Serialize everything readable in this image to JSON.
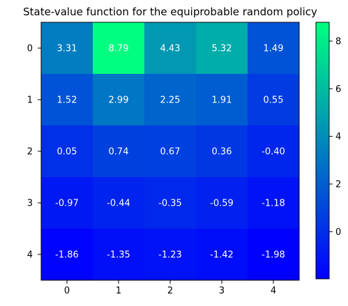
{
  "chart_data": {
    "type": "heatmap",
    "title": "State-value function for the equiprobable random policy",
    "xlabel": "",
    "ylabel": "",
    "x_ticks": [
      "0",
      "1",
      "2",
      "3",
      "4"
    ],
    "y_ticks": [
      "0",
      "1",
      "2",
      "3",
      "4"
    ],
    "values": [
      [
        3.31,
        8.79,
        4.43,
        5.32,
        1.49
      ],
      [
        1.52,
        2.99,
        2.25,
        1.91,
        0.55
      ],
      [
        0.05,
        0.74,
        0.67,
        0.36,
        -0.4
      ],
      [
        -0.97,
        -0.44,
        -0.35,
        -0.59,
        -1.18
      ],
      [
        -1.86,
        -1.35,
        -1.23,
        -1.42,
        -1.98
      ]
    ],
    "colormap": "winter",
    "color_low": "#0000ff",
    "color_high": "#00ff80",
    "value_range": [
      -1.98,
      8.79
    ],
    "colorbar_ticks": [
      0,
      2,
      4,
      6,
      8
    ],
    "colorbar_tick_labels": [
      "0",
      "2",
      "4",
      "6",
      "8"
    ],
    "annotation_color": "#ffffff",
    "grid": false,
    "legend": "colorbar-right"
  }
}
